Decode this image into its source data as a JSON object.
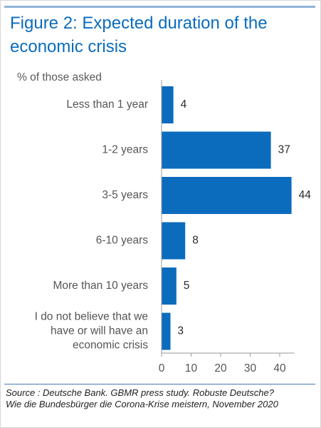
{
  "title_line1": "Figure 2: Expected duration of the",
  "title_line2": "economic crisis",
  "bar_color": "#0b6cbd",
  "source_line1": "Source : Deutsche Bank. GBMR press study. Robuste Deutsche?",
  "source_line2": "Wie die Bundesbürger die Corona-Krise meistern, November 2020",
  "chart_data": {
    "type": "bar",
    "orientation": "horizontal",
    "title": "Figure 2: Expected duration of the economic crisis",
    "xlabel": "",
    "ylabel": "% of those asked",
    "categories": [
      [
        "Less than 1 year"
      ],
      [
        "1-2 years"
      ],
      [
        "3-5 years"
      ],
      [
        "6-10 years"
      ],
      [
        "More than 10 years"
      ],
      [
        "I do not believe that we",
        "have or will have an",
        "economic crisis"
      ]
    ],
    "values": [
      4,
      37,
      44,
      8,
      5,
      3
    ],
    "xlim": [
      0,
      45
    ],
    "xticks": [
      0,
      10,
      20,
      30,
      40
    ],
    "grid": false
  }
}
